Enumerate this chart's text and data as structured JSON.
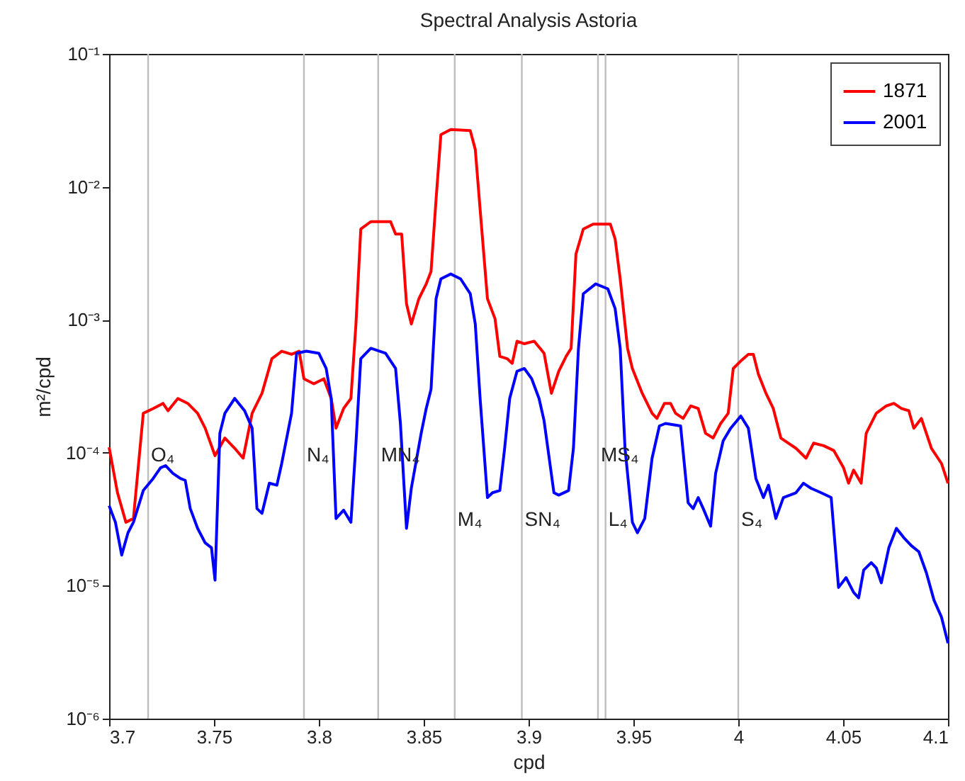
{
  "chart_data": {
    "type": "line",
    "title": "Spectral Analysis Astoria",
    "xlabel": "cpd",
    "ylabel": "m²/cpd",
    "log": "y",
    "legend": "top right",
    "xlim": [
      3.7,
      4.1
    ],
    "xticks": [
      3.7,
      3.75,
      3.8,
      3.85,
      3.9,
      3.95,
      4,
      4.05,
      4.1
    ],
    "ylim": [
      1e-06,
      0.1
    ],
    "yticks": [
      {
        "value": 1e-06,
        "label": "10⁻⁶"
      },
      {
        "value": 1e-05,
        "label": "10⁻⁵"
      },
      {
        "value": 0.0001,
        "label": "10⁻⁴"
      },
      {
        "value": 0.001,
        "label": "10⁻³"
      },
      {
        "value": 0.01,
        "label": "10⁻²"
      },
      {
        "value": 0.1,
        "label": "10⁻¹"
      }
    ],
    "series": [
      {
        "name": "1871",
        "color": "#ff0000",
        "x": [
          3.7,
          3.704,
          3.708,
          3.7116,
          3.7163,
          3.721,
          3.7257,
          3.7281,
          3.7328,
          3.7375,
          3.7422,
          3.7458,
          3.7505,
          3.7552,
          3.7599,
          3.7639,
          3.7682,
          3.7729,
          3.7776,
          3.7823,
          3.787,
          3.7906,
          3.7929,
          3.7976,
          3.8024,
          3.8059,
          3.8082,
          3.8118,
          3.8153,
          3.8177,
          3.82,
          3.8248,
          3.8342,
          3.8366,
          3.8395,
          3.8418,
          3.8441,
          3.8477,
          3.8512,
          3.8535,
          3.8559,
          3.8582,
          3.8629,
          3.8722,
          3.8746,
          3.8769,
          3.8804,
          3.884,
          3.8863,
          3.8898,
          3.8922,
          3.8945,
          3.898,
          3.9027,
          3.9074,
          3.9109,
          3.9144,
          3.9179,
          3.9203,
          3.9226,
          3.9261,
          3.9308,
          3.939,
          3.9413,
          3.9437,
          3.9472,
          3.9495,
          3.9542,
          3.9589,
          3.9612,
          3.9648,
          3.9677,
          3.9701,
          3.9737,
          3.9773,
          3.9809,
          3.9844,
          3.988,
          3.9916,
          3.9952,
          3.9976,
          4.0012,
          4.0048,
          4.0072,
          4.0096,
          4.0132,
          4.0167,
          4.0203,
          4.0239,
          4.0275,
          4.0323,
          4.0359,
          4.0407,
          4.0455,
          4.0502,
          4.0526,
          4.055,
          4.0586,
          4.061,
          4.0658,
          4.0706,
          4.0742,
          4.0778,
          4.0813,
          4.0837,
          4.0873,
          4.0921,
          4.0969,
          4.1
        ],
        "values": [
          0.00011,
          5e-05,
          3e-05,
          3.2e-05,
          0.000198,
          0.000215,
          0.000235,
          0.000207,
          0.000256,
          0.000235,
          0.000198,
          0.000153,
          9.5e-05,
          0.000129,
          0.000108,
          9.1e-05,
          0.000198,
          0.00028,
          0.00051,
          0.00058,
          0.00055,
          0.00058,
          0.00036,
          0.00033,
          0.00036,
          0.000256,
          0.000153,
          0.000215,
          0.000256,
          0.00093,
          0.00481,
          0.00547,
          0.00547,
          0.00441,
          0.00441,
          0.00132,
          0.00093,
          0.00144,
          0.00186,
          0.00231,
          0.00805,
          0.0247,
          0.027,
          0.0265,
          0.0191,
          0.00678,
          0.00144,
          0.00102,
          0.00053,
          0.00051,
          0.00047,
          0.00069,
          0.00066,
          0.00069,
          0.00056,
          0.00028,
          0.00041,
          0.00053,
          0.00061,
          0.00312,
          0.00481,
          0.00524,
          0.00524,
          0.00404,
          0.00203,
          0.00061,
          0.00043,
          0.00028,
          0.000198,
          0.000181,
          0.000235,
          0.000235,
          0.000198,
          0.000181,
          0.000225,
          0.000215,
          0.00014,
          0.000129,
          0.000166,
          0.000198,
          0.00043,
          0.00049,
          0.00055,
          0.00055,
          0.00039,
          0.00028,
          0.000215,
          0.000129,
          0.000118,
          0.000108,
          9.1e-05,
          0.000118,
          0.000113,
          0.000104,
          7.7e-05,
          5.9e-05,
          7.4e-05,
          5.9e-05,
          0.00014,
          0.000198,
          0.000225,
          0.000235,
          0.000215,
          0.000207,
          0.000153,
          0.000181,
          0.000108,
          8.3e-05,
          5.9e-05
        ]
      },
      {
        "name": "2001",
        "color": "#0000ff",
        "x": [
          3.7,
          3.703,
          3.706,
          3.709,
          3.7116,
          3.7163,
          3.721,
          3.7245,
          3.7269,
          3.7304,
          3.734,
          3.7363,
          3.7387,
          3.7422,
          3.7458,
          3.7488,
          3.7505,
          3.7528,
          3.7552,
          3.7599,
          3.7646,
          3.7682,
          3.7705,
          3.7729,
          3.7764,
          3.78,
          3.7823,
          3.787,
          3.7894,
          3.7941,
          3.8,
          3.8035,
          3.8059,
          3.8082,
          3.8118,
          3.8153,
          3.8177,
          3.82,
          3.8248,
          3.8318,
          3.8366,
          3.8389,
          3.8418,
          3.8441,
          3.8488,
          3.8512,
          3.8535,
          3.8559,
          3.8582,
          3.8629,
          3.8676,
          3.8722,
          3.8746,
          3.8769,
          3.8804,
          3.8828,
          3.8863,
          3.8886,
          3.891,
          3.8945,
          3.898,
          3.9015,
          3.905,
          3.9074,
          3.9121,
          3.9144,
          3.9191,
          3.9214,
          3.9238,
          3.9261,
          3.932,
          3.9378,
          3.9413,
          3.9437,
          3.946,
          3.9495,
          3.9519,
          3.9554,
          3.9589,
          3.9624,
          3.9653,
          3.9725,
          3.9761,
          3.9785,
          3.9809,
          3.9833,
          3.9868,
          3.9892,
          3.9928,
          3.9964,
          4.0012,
          4.0048,
          4.0084,
          4.012,
          4.0144,
          4.0179,
          4.0215,
          4.0275,
          4.0311,
          4.0347,
          4.0395,
          4.0443,
          4.0478,
          4.0514,
          4.055,
          4.0574,
          4.0598,
          4.0634,
          4.0658,
          4.0682,
          4.0718,
          4.0754,
          4.0789,
          4.0825,
          4.0861,
          4.0897,
          4.0933,
          4.0969,
          4.1
        ],
        "values": [
          4e-05,
          3e-05,
          1.7e-05,
          2.5e-05,
          3e-05,
          5.2e-05,
          6.4e-05,
          7.7e-05,
          8e-05,
          7e-05,
          6.4e-05,
          6.2e-05,
          3.8e-05,
          2.7e-05,
          2.1e-05,
          1.93e-05,
          1.1e-05,
          0.00014,
          0.000198,
          0.000256,
          0.000207,
          0.000153,
          3.8e-05,
          3.5e-05,
          5.9e-05,
          5.7e-05,
          8.3e-05,
          0.000198,
          0.00056,
          0.00058,
          0.00056,
          0.00043,
          0.000256,
          3.2e-05,
          3.7e-05,
          3e-05,
          0.000118,
          0.00051,
          0.00061,
          0.00056,
          0.00043,
          0.000166,
          2.7e-05,
          5.4e-05,
          0.00014,
          0.000215,
          0.0003,
          0.00144,
          0.00203,
          0.00221,
          0.00203,
          0.00157,
          0.00093,
          0.000256,
          4.6e-05,
          5e-05,
          5.2e-05,
          0.000108,
          0.000256,
          0.00041,
          0.00043,
          0.00036,
          0.000256,
          0.000174,
          5e-05,
          4.8e-05,
          5.2e-05,
          0.000108,
          0.00061,
          0.00157,
          0.00186,
          0.00171,
          0.00121,
          0.00061,
          0.000108,
          3e-05,
          2.5e-05,
          3.2e-05,
          9.1e-05,
          0.000159,
          0.000166,
          0.000159,
          4.2e-05,
          3.8e-05,
          4.6e-05,
          3.8e-05,
          2.8e-05,
          7e-05,
          0.000123,
          0.000153,
          0.000189,
          0.000153,
          6.4e-05,
          4.6e-05,
          5.7e-05,
          3.2e-05,
          4.6e-05,
          5e-05,
          5.9e-05,
          5.4e-05,
          5e-05,
          4.6e-05,
          9.7e-06,
          1.15e-05,
          8.9e-06,
          8.1e-06,
          1.31e-05,
          1.49e-05,
          1.36e-05,
          1.05e-05,
          1.93e-05,
          2.7e-05,
          2.3e-05,
          2e-05,
          1.8e-05,
          1.25e-05,
          7.8e-06,
          5.8e-06,
          3.7e-06
        ]
      }
    ],
    "ref_lines": [
      {
        "axis": "x",
        "value": 3.7186,
        "color": "#bdbdbd"
      },
      {
        "axis": "x",
        "value": 3.7929,
        "color": "#bdbdbd"
      },
      {
        "axis": "x",
        "value": 3.8283,
        "color": "#bdbdbd"
      },
      {
        "axis": "x",
        "value": 3.8648,
        "color": "#bdbdbd"
      },
      {
        "axis": "x",
        "value": 3.8968,
        "color": "#bdbdbd"
      },
      {
        "axis": "x",
        "value": 3.9331,
        "color": "#bdbdbd"
      },
      {
        "axis": "x",
        "value": 3.9367,
        "color": "#bdbdbd"
      },
      {
        "axis": "x",
        "value": 4,
        "color": "#bdbdbd"
      }
    ],
    "annotations": [
      {
        "text": "O₄",
        "x": 3.7186,
        "y": 9.5e-05
      },
      {
        "text": "N₄",
        "x": 3.7929,
        "y": 9.5e-05
      },
      {
        "text": "MN₄",
        "x": 3.8283,
        "y": 9.5e-05
      },
      {
        "text": "M₄",
        "x": 3.8648,
        "y": 3.1e-05
      },
      {
        "text": "SN₄",
        "x": 3.8968,
        "y": 3.1e-05
      },
      {
        "text": "MS₄",
        "x": 3.9331,
        "y": 9.5e-05
      },
      {
        "text": "L₄",
        "x": 3.9367,
        "y": 3.1e-05
      },
      {
        "text": "S₄",
        "x": 4,
        "y": 3.1e-05
      }
    ]
  }
}
